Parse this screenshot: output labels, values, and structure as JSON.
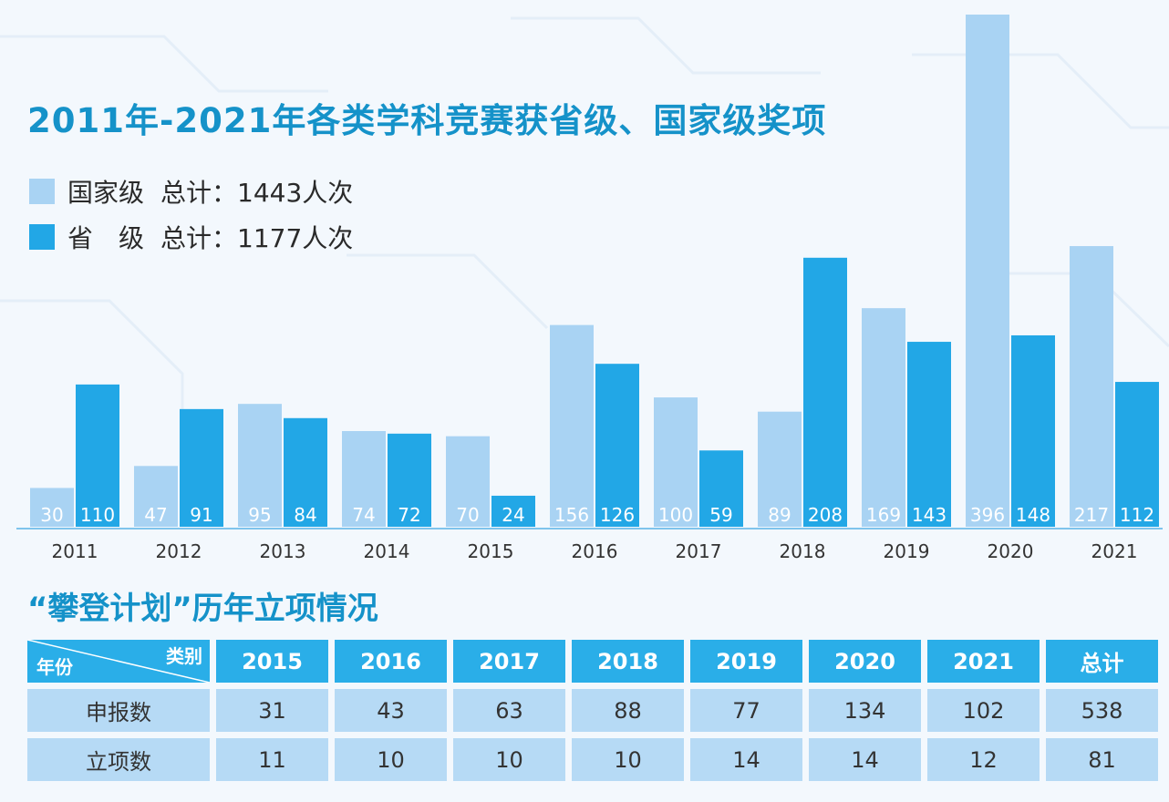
{
  "colors": {
    "national": "#a9d3f3",
    "provincial": "#22a7e6",
    "title": "#1592c9",
    "header": "#2aaee8",
    "cell": "#b6daf5"
  },
  "title": "2011年-2021年各类学科竞赛获省级、国家级奖项",
  "legend": [
    {
      "label": "国家级",
      "total": "总计：1443人次"
    },
    {
      "label": "省　级",
      "total": "总计：1177人次"
    }
  ],
  "chart_data": {
    "type": "bar",
    "categories": [
      "2011",
      "2012",
      "2013",
      "2014",
      "2015",
      "2016",
      "2017",
      "2018",
      "2019",
      "2020",
      "2021"
    ],
    "series": [
      {
        "name": "国家级",
        "values": [
          30,
          47,
          95,
          74,
          70,
          156,
          100,
          89,
          169,
          396,
          217
        ]
      },
      {
        "name": "省级",
        "values": [
          110,
          91,
          84,
          72,
          24,
          126,
          59,
          208,
          143,
          148,
          112
        ]
      }
    ],
    "data_labels": true,
    "legend_position": "top-left",
    "grid": false
  },
  "table": {
    "title": "“攀登计划”历年立项情况",
    "corner_top": "类别",
    "corner_bottom": "年份",
    "columns": [
      "2015",
      "2016",
      "2017",
      "2018",
      "2019",
      "2020",
      "2021",
      "总计"
    ],
    "rows": [
      {
        "label": "申报数",
        "values": [
          "31",
          "43",
          "63",
          "88",
          "77",
          "134",
          "102",
          "538"
        ]
      },
      {
        "label": "立项数",
        "values": [
          "11",
          "10",
          "10",
          "10",
          "14",
          "14",
          "12",
          "81"
        ]
      }
    ]
  }
}
